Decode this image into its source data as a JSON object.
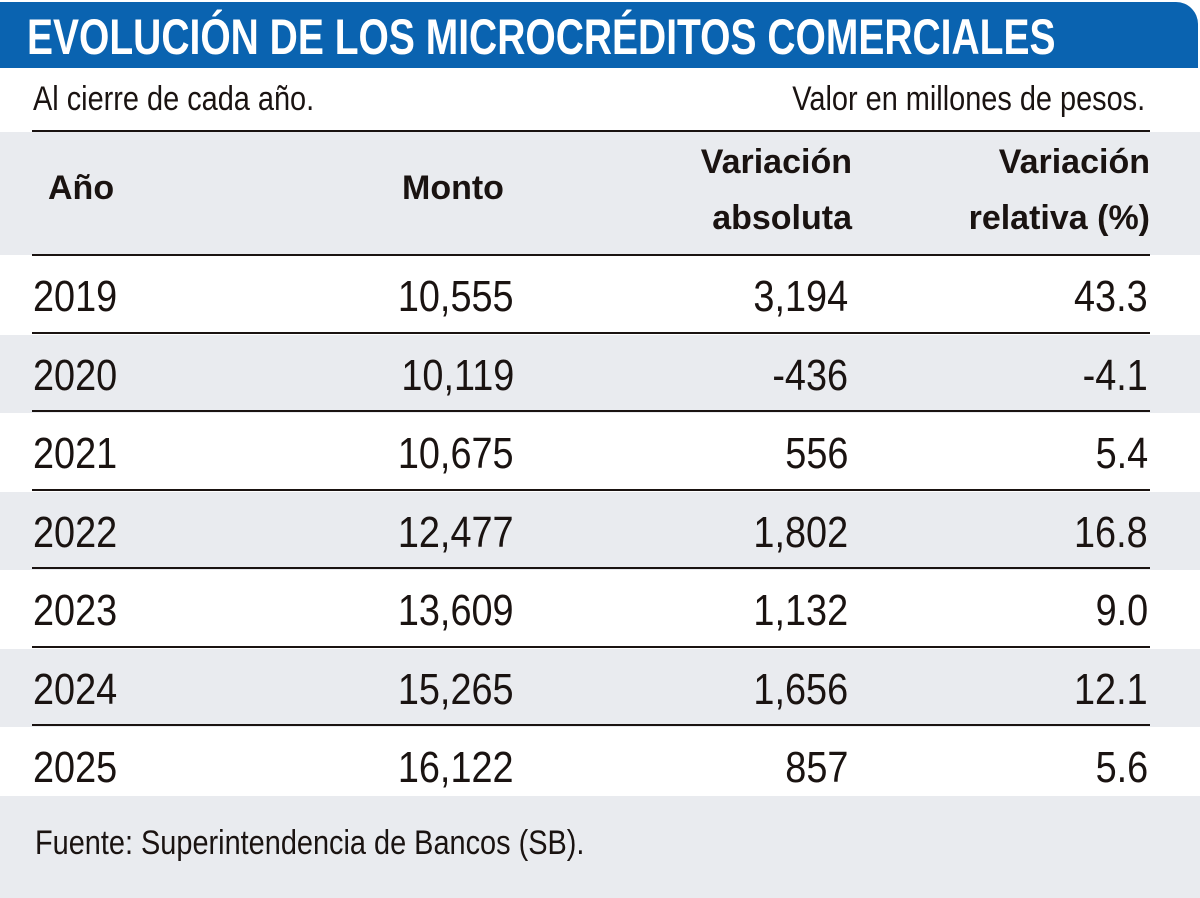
{
  "header": {
    "title": "EVOLUCIÓN DE LOS MICROCRÉDITOS COMERCIALES",
    "subtitle_left": "Al cierre de cada año.",
    "subtitle_right": "Valor en millones de pesos."
  },
  "colors": {
    "title_bar": "#0a63b0",
    "band": "#e9ebef",
    "text": "#1a1311"
  },
  "chart_data": {
    "type": "table",
    "title": "EVOLUCIÓN DE LOS MICROCRÉDITOS COMERCIALES",
    "columns": [
      {
        "line1": "Año",
        "line2": ""
      },
      {
        "line1": "Monto",
        "line2": ""
      },
      {
        "line1": "Variación",
        "line2": "absoluta"
      },
      {
        "line1": "Variación",
        "line2": "relativa (%)"
      }
    ],
    "rows": [
      [
        "2019",
        "10,555",
        "3,194",
        "43.3"
      ],
      [
        "2020",
        "10,119",
        "-436",
        "-4.1"
      ],
      [
        "2021",
        "10,675",
        "556",
        "5.4"
      ],
      [
        "2022",
        "12,477",
        "1,802",
        "16.8"
      ],
      [
        "2023",
        "13,609",
        "1,132",
        "9.0"
      ],
      [
        "2024",
        "15,265",
        "1,656",
        "12.1"
      ],
      [
        "2025",
        "16,122",
        "857",
        "5.6"
      ]
    ]
  },
  "footer": {
    "source": "Fuente: Superintendencia de Bancos (SB)."
  }
}
